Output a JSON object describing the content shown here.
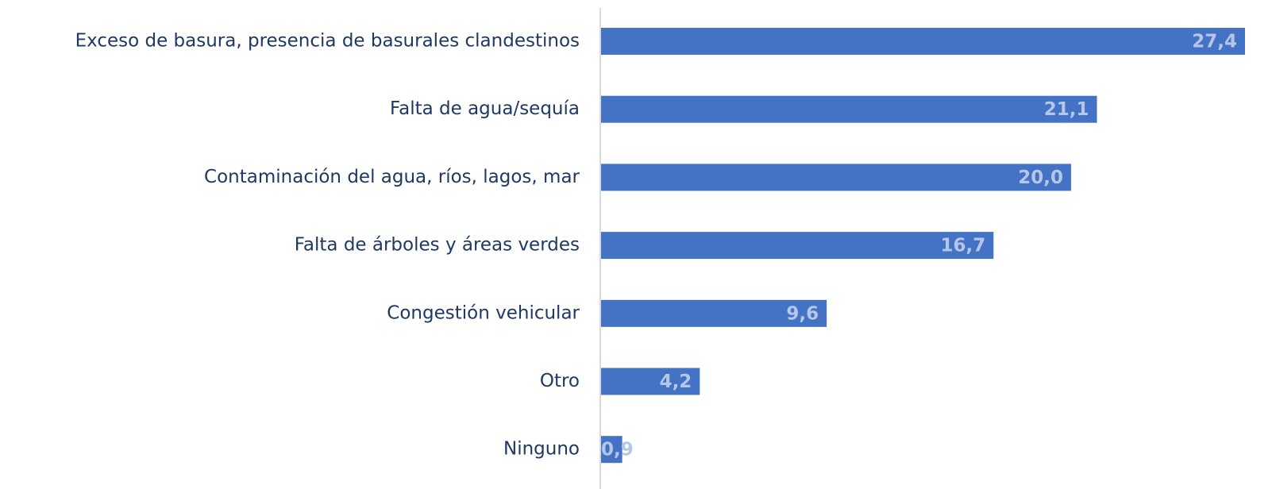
{
  "chart_data": {
    "type": "bar",
    "orientation": "horizontal",
    "categories": [
      "Exceso de basura, presencia de basurales clandestinos",
      "Falta de agua/sequía",
      "Contaminación del agua, ríos, lagos, mar",
      "Falta de árboles y áreas verdes",
      "Congestión vehicular",
      "Otro",
      "Ninguno"
    ],
    "values": [
      27.4,
      21.1,
      20.0,
      16.7,
      9.6,
      4.2,
      0.9
    ],
    "value_labels": [
      "27,4",
      "21,1",
      "20,0",
      "16,7",
      "9,6",
      "4,2",
      "0,9"
    ],
    "color": "#4472c4"
  }
}
